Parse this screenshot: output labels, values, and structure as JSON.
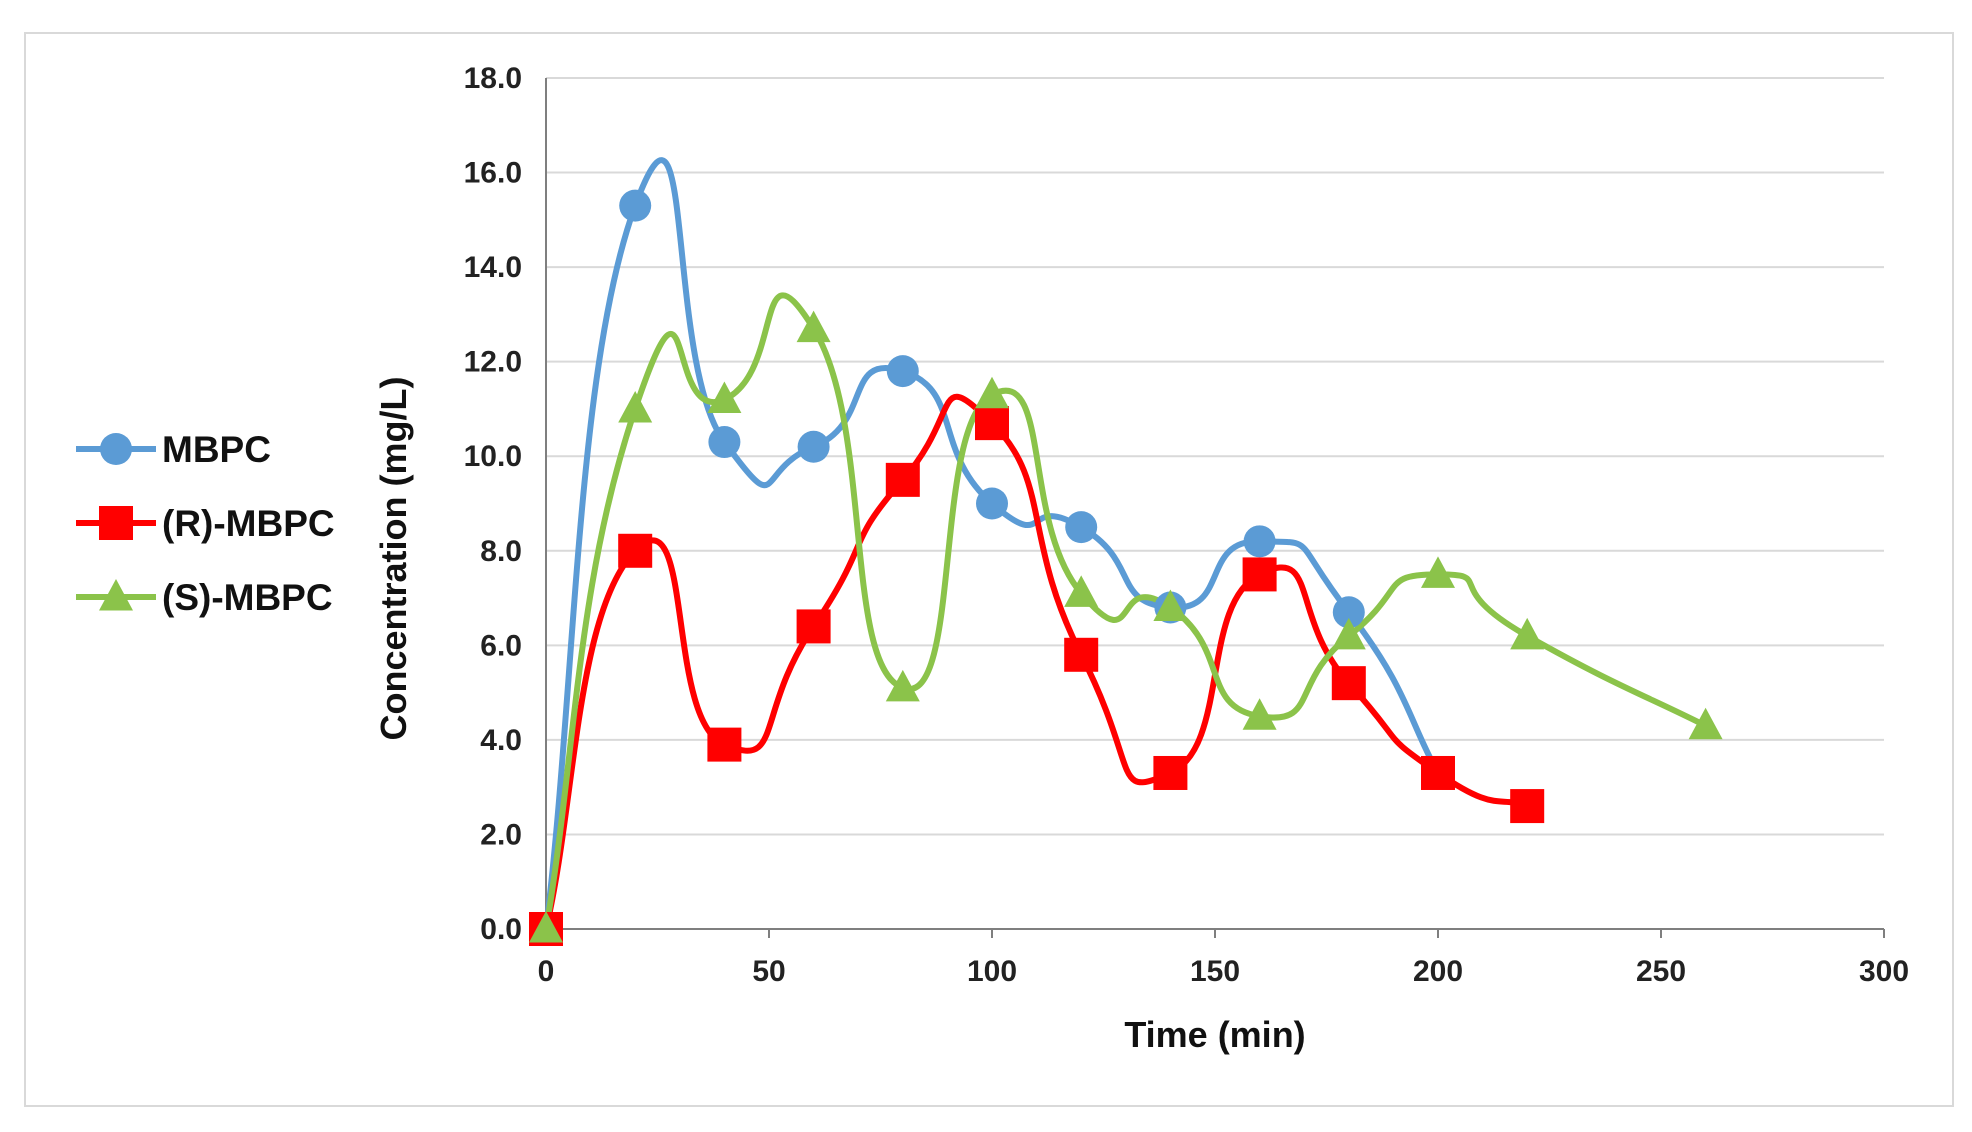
{
  "chart_data": {
    "type": "line",
    "title": "",
    "xlabel": "Time (min)",
    "ylabel": "Concentration (mg/L)",
    "xlim": [
      0,
      300
    ],
    "ylim": [
      0,
      18
    ],
    "xticks": [
      0,
      50,
      100,
      150,
      200,
      250,
      300
    ],
    "yticks": [
      0,
      2,
      4,
      6,
      8,
      10,
      12,
      14,
      16,
      18
    ],
    "ytick_labels": [
      "0.0",
      "2.0",
      "4.0",
      "6.0",
      "8.0",
      "10.0",
      "12.0",
      "14.0",
      "16.0",
      "18.0"
    ],
    "grid": true,
    "smooth": true,
    "legend_position": "left",
    "series": [
      {
        "name": "MBPC",
        "color": "#5b9bd5",
        "marker": "circle",
        "x": [
          0,
          20,
          40,
          60,
          80,
          100,
          120,
          140,
          160,
          180,
          200
        ],
        "y": [
          0.0,
          15.3,
          10.3,
          10.2,
          11.8,
          9.0,
          8.5,
          6.8,
          8.2,
          6.7,
          3.3
        ]
      },
      {
        "name": "(R)-MBPC",
        "color": "#ff0000",
        "marker": "square",
        "x": [
          0,
          20,
          40,
          60,
          80,
          100,
          120,
          140,
          160,
          180,
          200,
          220
        ],
        "y": [
          0.0,
          8.0,
          3.9,
          6.4,
          9.5,
          10.7,
          5.8,
          3.3,
          7.5,
          5.2,
          3.3,
          2.6
        ]
      },
      {
        "name": "(S)-MBPC",
        "color": "#8bc34a",
        "marker": "triangle",
        "x": [
          0,
          20,
          40,
          60,
          80,
          100,
          120,
          140,
          160,
          180,
          200,
          220,
          260
        ],
        "y": [
          0.0,
          11.0,
          11.2,
          12.7,
          5.1,
          11.3,
          7.1,
          6.8,
          4.5,
          6.2,
          7.5,
          6.2,
          4.3
        ]
      }
    ]
  }
}
